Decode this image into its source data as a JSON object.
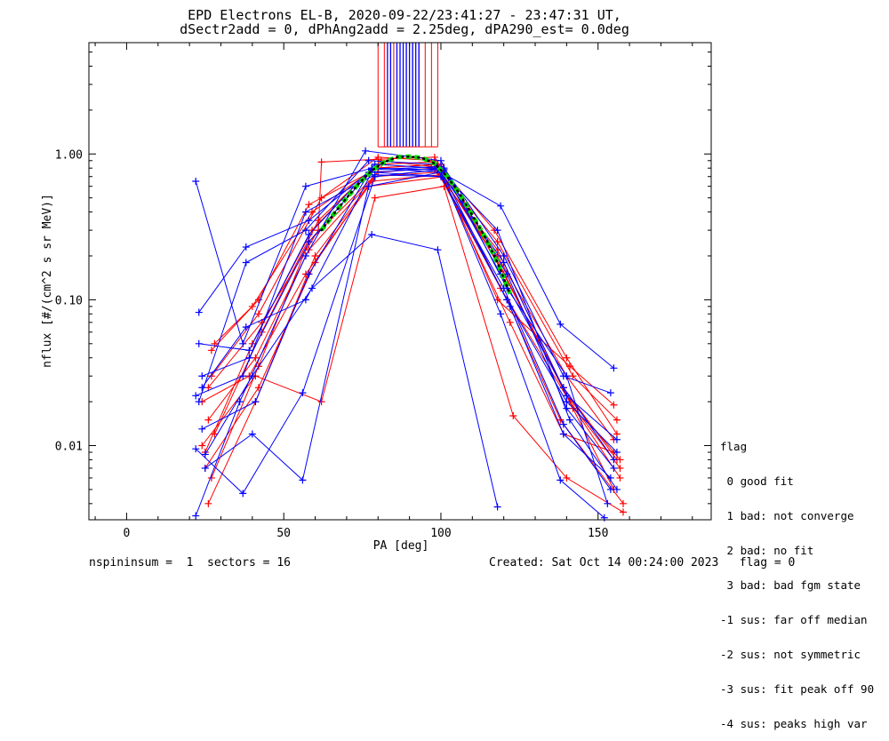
{
  "chart_data": {
    "type": "line",
    "title": "EPD Electrons EL-B, 2020-09-22/23:41:27 - 23:47:31 UT,",
    "subtitle": "dSectr2add = 0, dPhAng2add = 2.25deg, dPA290_est=   0.0deg",
    "xlabel": "PA [deg]",
    "ylabel": "nflux [#/(cm^2 s sr MeV)]",
    "xlim": [
      -12,
      186
    ],
    "ylim": [
      0.0031,
      5.8
    ],
    "yscale": "log",
    "xticks": [
      "0",
      "50",
      "100",
      "150"
    ],
    "yticks": [
      "0.01",
      "0.10",
      "1.00"
    ],
    "colors": {
      "red": "#ff0000",
      "blue": "#0000ff",
      "fit": "#00dd00",
      "fit_dots": "#000000"
    },
    "series": [
      {
        "color": "red",
        "values": [
          [
            27,
            0.006
          ],
          [
            42,
            0.035
          ],
          [
            58,
            0.25
          ],
          [
            80,
            0.75
          ],
          [
            98,
            0.8
          ],
          [
            118,
            0.2
          ],
          [
            140,
            0.03
          ],
          [
            155,
            0.011
          ]
        ]
      },
      {
        "color": "red",
        "values": [
          [
            26,
            0.004
          ],
          [
            41,
            0.02
          ],
          [
            60,
            0.2
          ],
          [
            79,
            0.7
          ],
          [
            99,
            0.78
          ],
          [
            119,
            0.17
          ],
          [
            141,
            0.02
          ],
          [
            157,
            0.006
          ]
        ]
      },
      {
        "color": "red",
        "values": [
          [
            25,
            0.009
          ],
          [
            40,
            0.05
          ],
          [
            59,
            0.3
          ],
          [
            78,
            0.8
          ],
          [
            100,
            0.85
          ],
          [
            120,
            0.15
          ],
          [
            139,
            0.025
          ],
          [
            156,
            0.008
          ]
        ]
      },
      {
        "color": "red",
        "values": [
          [
            28,
            0.012
          ],
          [
            43,
            0.06
          ],
          [
            61,
            0.35
          ],
          [
            81,
            0.9
          ],
          [
            97,
            0.82
          ],
          [
            118,
            0.22
          ],
          [
            142,
            0.018
          ],
          [
            155,
            0.005
          ]
        ]
      },
      {
        "color": "red",
        "values": [
          [
            24,
            0.02
          ],
          [
            39,
            0.03
          ],
          [
            57,
            0.15
          ],
          [
            77,
            0.6
          ],
          [
            101,
            0.7
          ],
          [
            121,
            0.1
          ],
          [
            138,
            0.015
          ],
          [
            158,
            0.004
          ]
        ]
      },
      {
        "color": "red",
        "values": [
          [
            27,
            0.03
          ],
          [
            42,
            0.08
          ],
          [
            62,
            0.5
          ],
          [
            80,
            0.95
          ],
          [
            98,
            0.9
          ],
          [
            117,
            0.3
          ],
          [
            140,
            0.04
          ],
          [
            156,
            0.012
          ]
        ]
      },
      {
        "color": "red",
        "values": [
          [
            26,
            0.015
          ],
          [
            41,
            0.04
          ],
          [
            58,
            0.22
          ],
          [
            79,
            0.7
          ],
          [
            99,
            0.75
          ],
          [
            119,
            0.12
          ],
          [
            141,
            0.02
          ],
          [
            157,
            0.007
          ]
        ]
      },
      {
        "color": "red",
        "values": [
          [
            25,
            0.007
          ],
          [
            42,
            0.025
          ],
          [
            60,
            0.18
          ],
          [
            78,
            0.65
          ],
          [
            100,
            0.72
          ],
          [
            122,
            0.07
          ],
          [
            139,
            0.012
          ],
          [
            155,
            0.009
          ]
        ]
      },
      {
        "color": "red",
        "values": [
          [
            28,
            0.05
          ],
          [
            40,
            0.09
          ],
          [
            59,
            0.4
          ],
          [
            81,
            0.85
          ],
          [
            97,
            0.88
          ],
          [
            118,
            0.25
          ],
          [
            142,
            0.03
          ],
          [
            156,
            0.015
          ]
        ]
      },
      {
        "color": "red",
        "values": [
          [
            26,
            0.025
          ],
          [
            43,
            0.07
          ],
          [
            61,
            0.3
          ],
          [
            62,
            0.88
          ],
          [
            80,
            0.92
          ],
          [
            98,
            0.95
          ],
          [
            120,
            0.15
          ],
          [
            140,
            0.022
          ],
          [
            157,
            0.008
          ]
        ]
      },
      {
        "color": "red",
        "values": [
          [
            24,
            0.01
          ],
          [
            41,
            0.03
          ],
          [
            62,
            0.02
          ],
          [
            79,
            0.5
          ],
          [
            101,
            0.6
          ],
          [
            123,
            0.016
          ],
          [
            140,
            0.006
          ],
          [
            158,
            0.0035
          ]
        ]
      },
      {
        "color": "red",
        "values": [
          [
            27,
            0.045
          ],
          [
            42,
            0.1
          ],
          [
            58,
            0.45
          ],
          [
            80,
            0.8
          ],
          [
            99,
            0.85
          ],
          [
            118,
            0.1
          ],
          [
            141,
            0.035
          ],
          [
            155,
            0.019
          ]
        ]
      },
      {
        "color": "blue",
        "values": [
          [
            22,
            0.65
          ],
          [
            37,
            0.05
          ],
          [
            57,
            0.6
          ],
          [
            78,
            0.8
          ],
          [
            100,
            0.75
          ],
          [
            119,
            0.44
          ],
          [
            138,
            0.068
          ],
          [
            155,
            0.034
          ]
        ]
      },
      {
        "color": "blue",
        "values": [
          [
            23,
            0.082
          ],
          [
            38,
            0.23
          ],
          [
            58,
            0.35
          ],
          [
            77,
            0.75
          ],
          [
            101,
            0.8
          ],
          [
            120,
            0.2
          ],
          [
            139,
            0.03
          ],
          [
            154,
            0.023
          ]
        ]
      },
      {
        "color": "blue",
        "values": [
          [
            22,
            0.0095
          ],
          [
            37,
            0.0047
          ],
          [
            56,
            0.023
          ],
          [
            79,
            0.7
          ],
          [
            99,
            0.78
          ],
          [
            121,
            0.1
          ],
          [
            140,
            0.02
          ],
          [
            156,
            0.009
          ]
        ]
      },
      {
        "color": "blue",
        "values": [
          [
            24,
            0.03
          ],
          [
            39,
            0.04
          ],
          [
            58,
            0.25
          ],
          [
            78,
            0.78
          ],
          [
            100,
            0.82
          ],
          [
            119,
            0.15
          ],
          [
            139,
            0.025
          ],
          [
            155,
            0.008
          ]
        ]
      },
      {
        "color": "blue",
        "values": [
          [
            23,
            0.02
          ],
          [
            38,
            0.18
          ],
          [
            57,
            0.3
          ],
          [
            77,
            0.9
          ],
          [
            98,
            0.85
          ],
          [
            118,
            0.3
          ],
          [
            141,
            0.015
          ],
          [
            156,
            0.005
          ]
        ]
      },
      {
        "color": "blue",
        "values": [
          [
            25,
            0.0087
          ],
          [
            40,
            0.03
          ],
          [
            59,
            0.12
          ],
          [
            78,
            0.28
          ],
          [
            99,
            0.22
          ],
          [
            118,
            0.0038
          ]
        ]
      },
      {
        "color": "blue",
        "values": [
          [
            22,
            0.0033
          ],
          [
            36,
            0.02
          ],
          [
            57,
            0.2
          ],
          [
            76,
            1.05
          ],
          [
            100,
            0.9
          ],
          [
            121,
            0.12
          ],
          [
            140,
            0.03
          ],
          [
            153,
            0.004
          ]
        ]
      },
      {
        "color": "blue",
        "values": [
          [
            24,
            0.025
          ],
          [
            38,
            0.065
          ],
          [
            57,
            0.1
          ],
          [
            78,
            0.75
          ],
          [
            101,
            0.7
          ],
          [
            122,
            0.09
          ],
          [
            139,
            0.012
          ],
          [
            154,
            0.006
          ]
        ]
      },
      {
        "color": "blue",
        "values": [
          [
            23,
            0.05
          ],
          [
            39,
            0.045
          ],
          [
            58,
            0.28
          ],
          [
            79,
            0.85
          ],
          [
            99,
            0.8
          ],
          [
            120,
            0.18
          ],
          [
            140,
            0.022
          ],
          [
            156,
            0.011
          ]
        ]
      },
      {
        "color": "blue",
        "values": [
          [
            25,
            0.007
          ],
          [
            40,
            0.012
          ],
          [
            56,
            0.0058
          ],
          [
            77,
            0.6
          ],
          [
            100,
            0.75
          ],
          [
            119,
            0.08
          ],
          [
            138,
            0.0058
          ],
          [
            152,
            0.0032
          ]
        ]
      },
      {
        "color": "blue",
        "values": [
          [
            24,
            0.013
          ],
          [
            41,
            0.02
          ],
          [
            58,
            0.15
          ],
          [
            78,
            0.8
          ],
          [
            101,
            0.78
          ],
          [
            121,
            0.15
          ],
          [
            140,
            0.018
          ],
          [
            155,
            0.007
          ]
        ]
      },
      {
        "color": "blue",
        "values": [
          [
            22,
            0.022
          ],
          [
            37,
            0.03
          ],
          [
            57,
            0.4
          ],
          [
            79,
            0.72
          ],
          [
            100,
            0.7
          ],
          [
            120,
            0.12
          ],
          [
            139,
            0.014
          ],
          [
            154,
            0.005
          ]
        ]
      }
    ],
    "fit": {
      "x": [
        62,
        66,
        70,
        74,
        78,
        82,
        86,
        90,
        94,
        98,
        102,
        106,
        110,
        114,
        118,
        122
      ],
      "y": [
        0.3,
        0.39,
        0.5,
        0.63,
        0.77,
        0.88,
        0.95,
        0.96,
        0.94,
        0.86,
        0.7,
        0.53,
        0.38,
        0.27,
        0.18,
        0.11
      ]
    },
    "vlines": {
      "y_bottom": 1.12,
      "red_x": [
        80,
        82,
        84,
        85,
        87,
        89,
        91,
        93,
        95,
        97,
        99
      ],
      "blue_x": [
        83,
        84,
        86,
        87,
        88,
        89,
        90,
        91,
        92,
        93
      ]
    }
  },
  "legend": {
    "title": "flag",
    "items": [
      " 0 good fit",
      " 1 bad: not converge",
      " 2 bad: no fit",
      " 3 bad: bad fgm state",
      "-1 sus: far off median",
      "-2 sus: not symmetric",
      "-3 sus: fit peak off 90",
      "-4 sus: peaks high var"
    ]
  },
  "footer": {
    "left": "nspininsum =  1  sectors = 16",
    "right": "Created: Sat Oct 14 00:24:00 2023   flag = 0"
  }
}
